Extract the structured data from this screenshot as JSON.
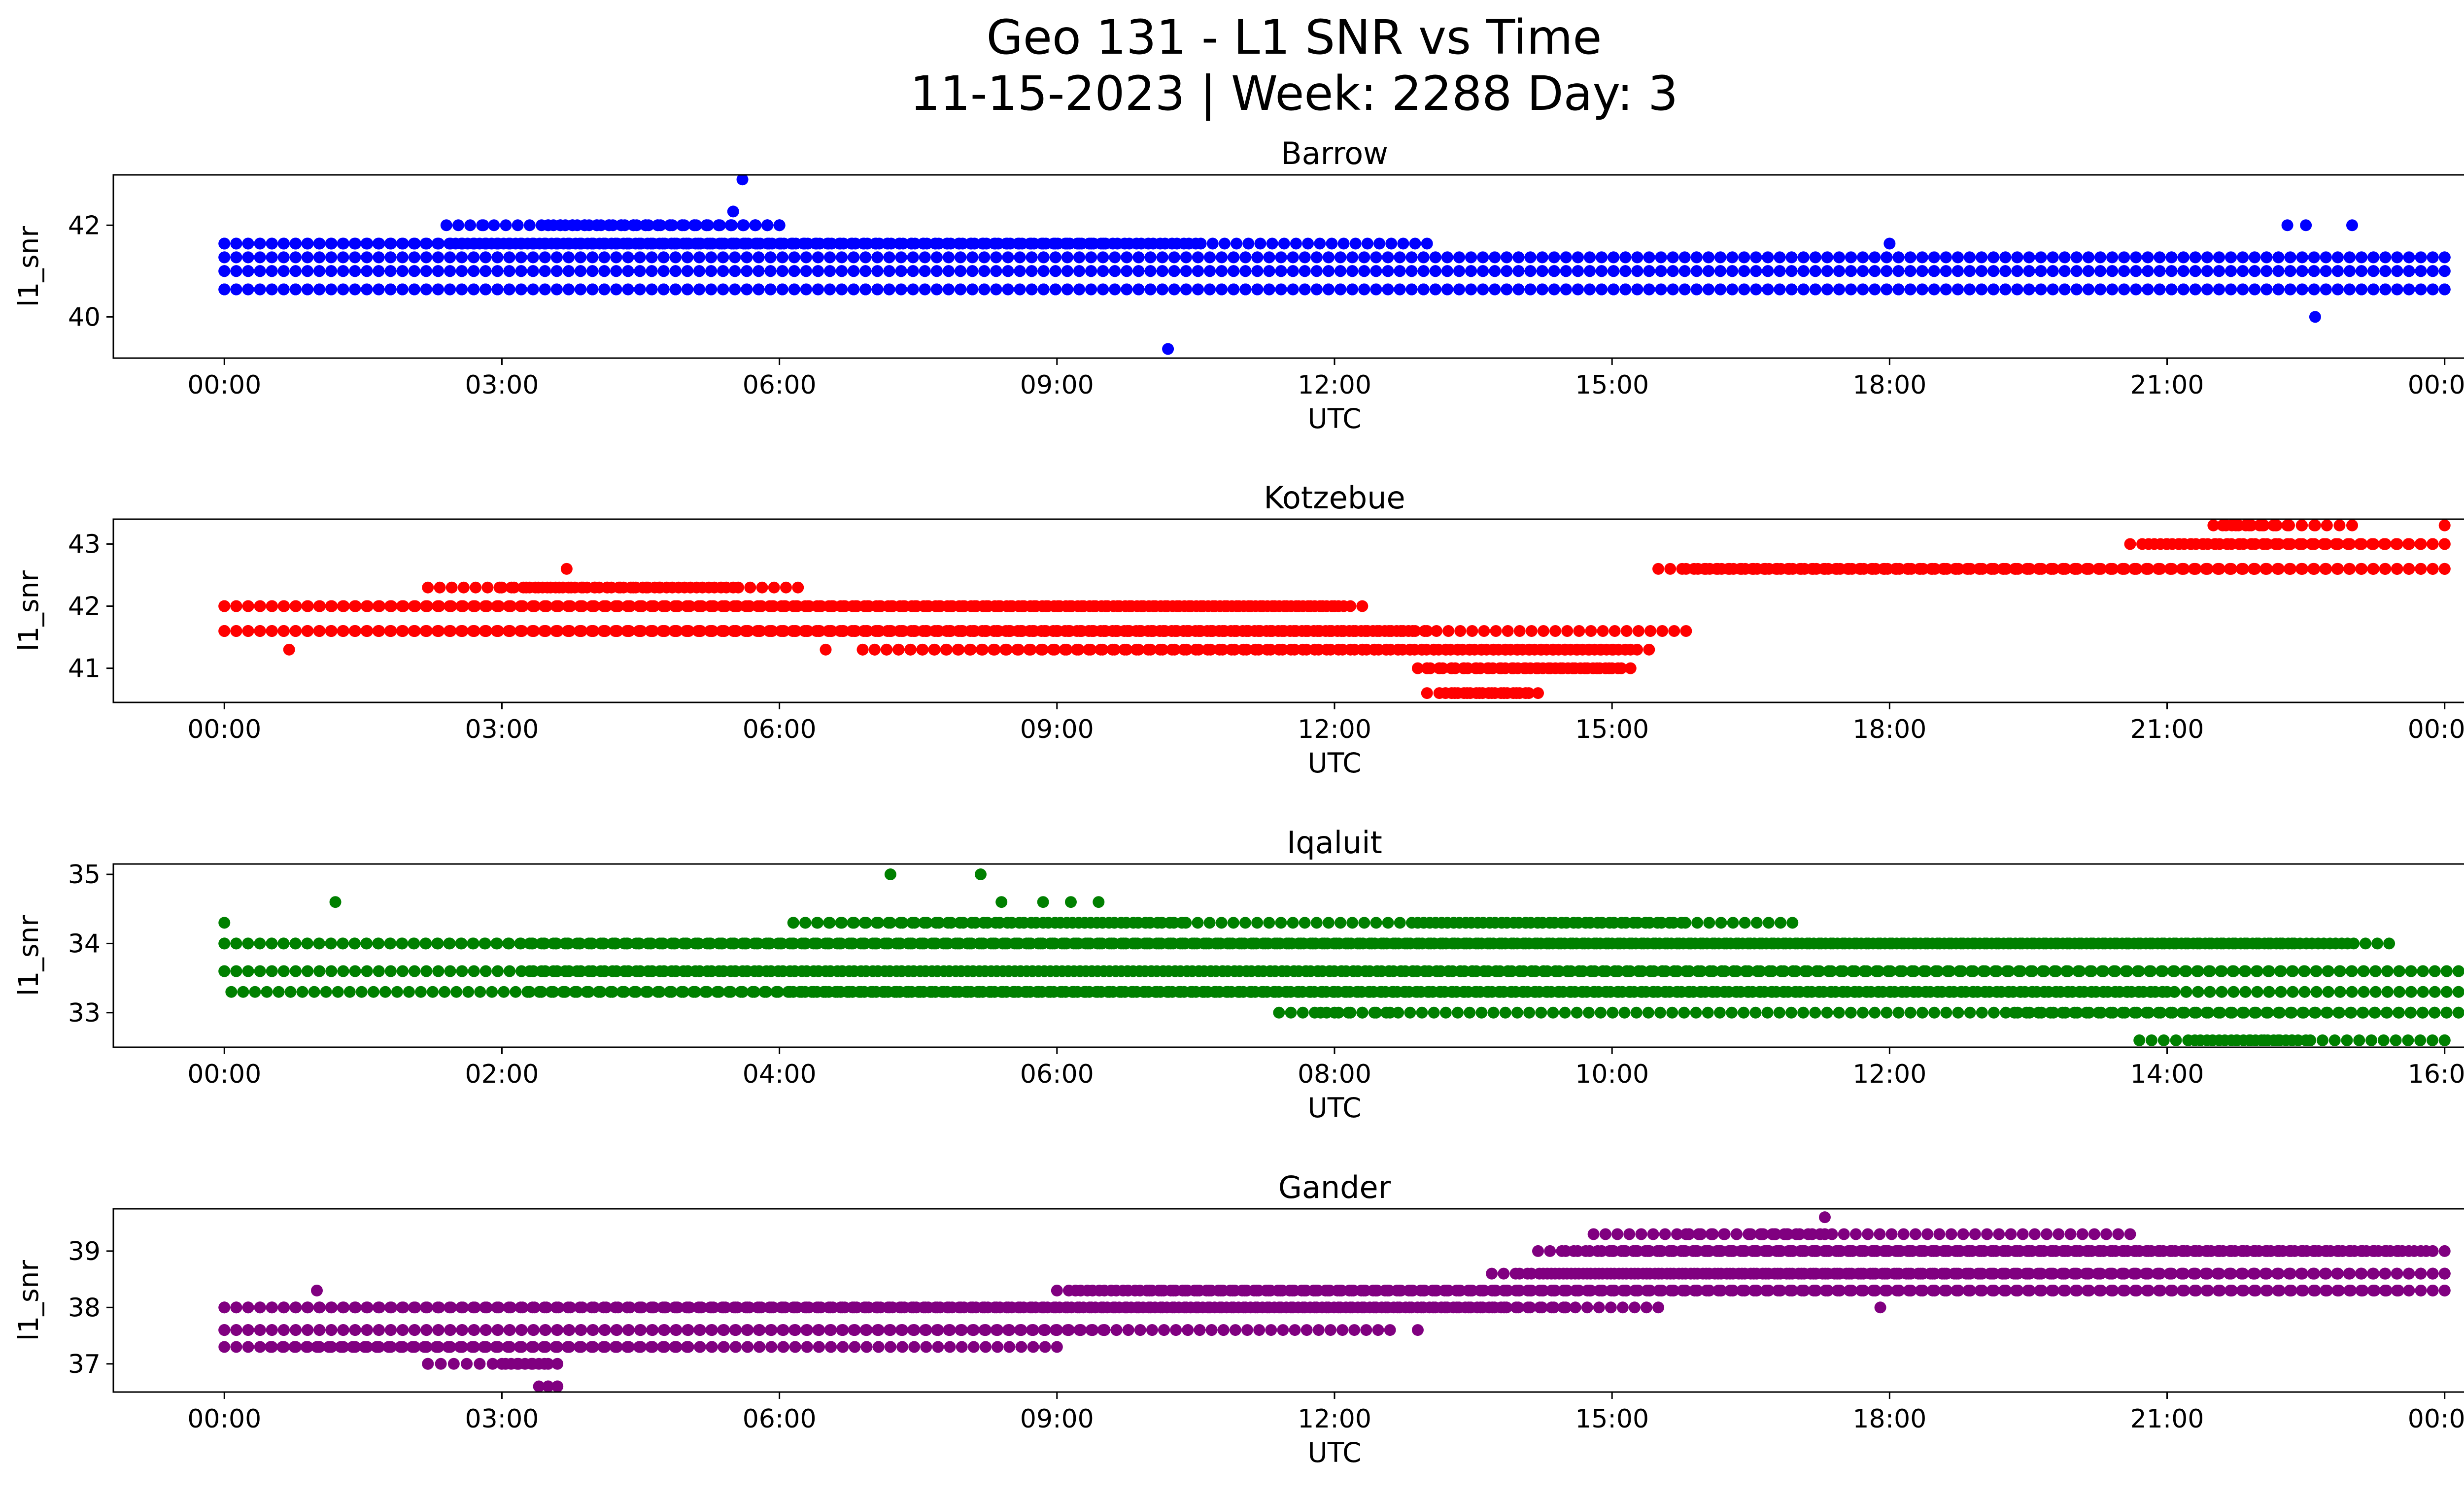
{
  "figure": {
    "title_line1": "Geo 131 - L1 SNR vs Time",
    "title_line2": "11-15-2023 | Week: 2288 Day: 3"
  },
  "chart_data": [
    {
      "type": "scatter",
      "title": "Barrow",
      "color": "#0000ff",
      "xlabel": "UTC",
      "ylabel": "l1_snr",
      "xlim": [
        -1.2,
        25.2
      ],
      "ylim": [
        39.1,
        43.1
      ],
      "xticks": [
        0,
        3,
        6,
        9,
        12,
        15,
        18,
        21,
        24
      ],
      "xtick_labels": [
        "00:00",
        "03:00",
        "06:00",
        "09:00",
        "12:00",
        "15:00",
        "18:00",
        "21:00",
        "00:00"
      ],
      "yticks": [
        40,
        42
      ],
      "ytick_labels": [
        "40",
        "42"
      ],
      "levels": [
        40.6,
        41.0,
        41.3,
        41.6,
        42.0
      ],
      "bands": [
        [
          [
            0.0,
            24.0
          ],
          [
            0.0,
            24.0
          ],
          [
            0.0,
            24.0
          ],
          [
            0.0,
            13.0
          ],
          [
            2.4,
            6.0
          ]
        ],
        [
          [
            0.0,
            24.0
          ],
          [
            0.0,
            24.0
          ],
          [
            0.0,
            24.0
          ],
          [
            0.0,
            10.5
          ],
          [
            3.5,
            6.0
          ]
        ],
        [
          [
            0.0,
            24.0
          ],
          [
            0.0,
            24.0
          ],
          [
            0.0,
            24.0
          ],
          [
            2.5,
            9.5
          ],
          [
            3.5,
            6.0
          ]
        ]
      ],
      "outliers": [
        [
          5.6,
          43.0
        ],
        [
          5.5,
          42.3
        ],
        [
          10.2,
          39.3
        ],
        [
          22.6,
          40.0
        ],
        [
          2.8,
          42.0
        ],
        [
          18.0,
          41.6
        ],
        [
          22.3,
          42.0
        ],
        [
          22.5,
          42.0
        ],
        [
          23.0,
          42.0
        ]
      ]
    },
    {
      "type": "scatter",
      "title": "Kotzebue",
      "color": "#ff0000",
      "xlabel": "UTC",
      "ylabel": "l1_snr",
      "xlim": [
        -1.2,
        25.2
      ],
      "ylim": [
        40.45,
        43.4
      ],
      "xticks": [
        0,
        3,
        6,
        9,
        12,
        15,
        18,
        21,
        24
      ],
      "xtick_labels": [
        "00:00",
        "03:00",
        "06:00",
        "09:00",
        "12:00",
        "15:00",
        "18:00",
        "21:00",
        "00:00"
      ],
      "yticks": [
        41,
        42,
        43
      ],
      "ytick_labels": [
        "41",
        "42",
        "43"
      ],
      "levels": [
        40.6,
        41.0,
        41.3,
        41.6,
        42.0,
        42.3,
        42.6,
        43.0,
        43.3
      ],
      "bands": [
        [
          [
            13.0,
            14.2
          ],
          [
            12.9,
            15.2
          ],
          [
            12.3,
            15.4
          ],
          [
            0.0,
            15.8
          ],
          [
            0.0,
            12.3
          ],
          [
            2.2,
            6.2
          ],
          [
            15.5,
            24.0
          ],
          [
            20.6,
            24.0
          ],
          [
            21.5,
            23.0
          ]
        ],
        [
          [
            13.2,
            14.0
          ],
          [
            13.0,
            15.0
          ],
          [
            6.9,
            15.2
          ],
          [
            0.0,
            13.0
          ],
          [
            0.0,
            12.1
          ],
          [
            3.0,
            5.5
          ],
          [
            15.8,
            24.0
          ],
          [
            20.8,
            24.0
          ],
          [
            21.6,
            22.6
          ]
        ],
        [
          [
            13.3,
            14.1
          ],
          [
            13.0,
            15.1
          ],
          [
            6.9,
            15.0
          ],
          [
            0.0,
            12.8
          ],
          [
            0.0,
            12.0
          ],
          [
            3.3,
            4.7
          ],
          [
            16.0,
            24.0
          ],
          [
            21.0,
            24.0
          ],
          [
            21.7,
            22.3
          ]
        ]
      ],
      "outliers": [
        [
          3.7,
          42.6
        ],
        [
          24.0,
          43.3
        ],
        [
          0.7,
          41.3
        ],
        [
          6.5,
          41.3
        ]
      ]
    },
    {
      "type": "scatter",
      "title": "Iqaluit",
      "color": "#008000",
      "xlabel": "UTC",
      "ylabel": "l1_snr",
      "xlim": [
        -0.8,
        16.8
      ],
      "ylim": [
        32.5,
        35.15
      ],
      "xticks": [
        0,
        2,
        4,
        6,
        8,
        10,
        12,
        14,
        16
      ],
      "xtick_labels": [
        "00:00",
        "02:00",
        "04:00",
        "06:00",
        "08:00",
        "10:00",
        "12:00",
        "14:00",
        "16:00"
      ],
      "yticks": [
        33,
        34,
        35
      ],
      "ytick_labels": [
        "33",
        "34",
        "35"
      ],
      "levels": [
        32.6,
        33.0,
        33.3,
        33.6,
        34.0,
        34.3
      ],
      "bands": [
        [
          [
            13.8,
            16.0
          ],
          [
            7.6,
            16.1
          ],
          [
            0.05,
            16.1
          ],
          [
            0.0,
            16.1
          ],
          [
            0.0,
            15.6
          ],
          [
            4.1,
            11.3
          ]
        ],
        [
          [
            14.2,
            14.9
          ],
          [
            12.9,
            16.1
          ],
          [
            2.2,
            16.1
          ],
          [
            0.0,
            16.1
          ],
          [
            0.0,
            15.3
          ],
          [
            4.1,
            6.9
          ]
        ],
        [
          [
            14.5,
            15.0
          ],
          [
            7.9,
            8.4
          ],
          [
            4.1,
            14.0
          ],
          [
            2.2,
            16.1
          ],
          [
            2.2,
            14.9
          ],
          [
            8.6,
            10.5
          ]
        ]
      ],
      "outliers": [
        [
          4.8,
          35.0
        ],
        [
          5.45,
          35.0
        ],
        [
          5.6,
          34.6
        ],
        [
          5.9,
          34.6
        ],
        [
          6.1,
          34.6
        ],
        [
          6.3,
          34.6
        ],
        [
          0.8,
          34.6
        ],
        [
          16.0,
          32.6
        ],
        [
          0.0,
          34.3
        ]
      ]
    },
    {
      "type": "scatter",
      "title": "Gander",
      "color": "#800080",
      "xlabel": "UTC",
      "ylabel": "l1_snr",
      "xlim": [
        -1.2,
        25.2
      ],
      "ylim": [
        36.5,
        39.75
      ],
      "xticks": [
        0,
        3,
        6,
        9,
        12,
        15,
        18,
        21,
        24
      ],
      "xtick_labels": [
        "00:00",
        "03:00",
        "06:00",
        "09:00",
        "12:00",
        "15:00",
        "18:00",
        "21:00",
        "00:00"
      ],
      "yticks": [
        37,
        38,
        39
      ],
      "ytick_labels": [
        "37",
        "38",
        "39"
      ],
      "levels": [
        36.6,
        37.0,
        37.3,
        37.6,
        38.0,
        38.3,
        38.6,
        39.0,
        39.3
      ],
      "bands": [
        [
          [
            3.4,
            3.6
          ],
          [
            2.2,
            3.6
          ],
          [
            0.0,
            9.0
          ],
          [
            0.0,
            12.6
          ],
          [
            0.0,
            15.5
          ],
          [
            9.0,
            24.0
          ],
          [
            13.7,
            24.0
          ],
          [
            14.2,
            24.0
          ],
          [
            14.8,
            20.6
          ]
        ],
        [
          [
            3.5,
            3.5
          ],
          [
            3.0,
            3.5
          ],
          [
            0.5,
            7.2
          ],
          [
            0.0,
            10.8
          ],
          [
            0.0,
            13.8
          ],
          [
            9.2,
            24.0
          ],
          [
            14.0,
            24.0
          ],
          [
            14.5,
            23.8
          ],
          [
            15.8,
            17.3
          ]
        ],
        [
          [
            3.5,
            3.6
          ],
          [
            3.1,
            3.4
          ],
          [
            1.0,
            5.0
          ],
          [
            0.0,
            9.5
          ],
          [
            4.5,
            14.5
          ],
          [
            10.0,
            23.5
          ],
          [
            14.3,
            24.0
          ],
          [
            15.0,
            23.5
          ],
          [
            16.5,
            16.9
          ]
        ]
      ],
      "outliers": [
        [
          17.3,
          39.6
        ],
        [
          3.5,
          36.6
        ],
        [
          2.2,
          37.0
        ],
        [
          17.9,
          38.0
        ],
        [
          12.9,
          37.6
        ],
        [
          1.0,
          38.3
        ]
      ]
    }
  ]
}
